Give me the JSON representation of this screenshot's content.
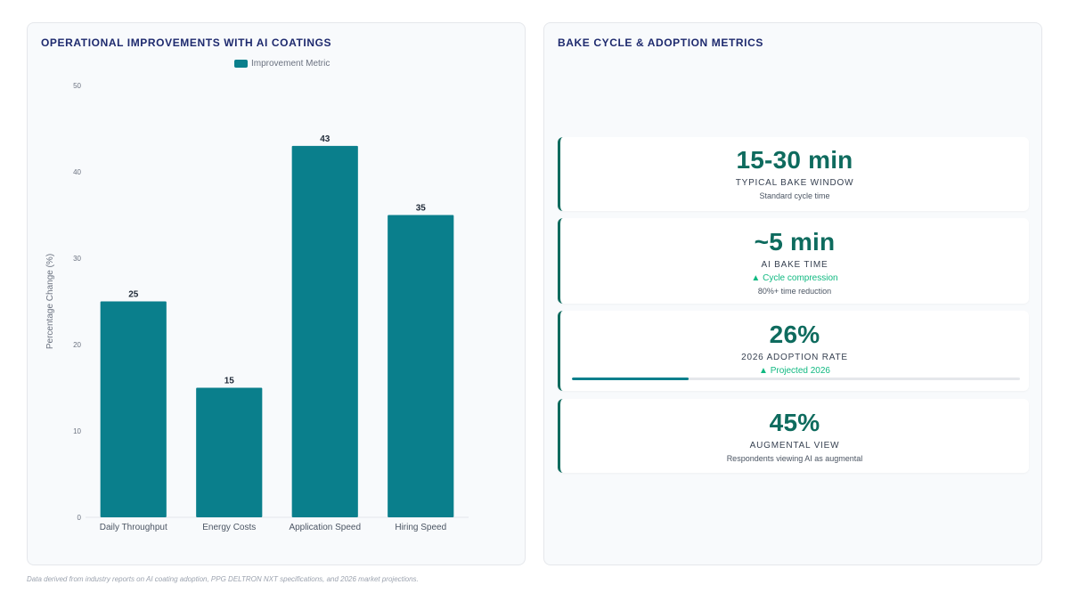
{
  "left_panel": {
    "title": "OPERATIONAL IMPROVEMENTS WITH AI COATINGS"
  },
  "right_panel": {
    "title": "BAKE CYCLE & ADOPTION METRICS"
  },
  "chart_data": {
    "type": "bar",
    "categories": [
      "Daily Throughput",
      "Energy Costs",
      "Application Speed",
      "Hiring Speed"
    ],
    "series": [
      {
        "name": "Improvement Metric",
        "values": [
          25,
          15,
          43,
          35
        ]
      }
    ],
    "data_labels": [
      "25",
      "15",
      "43",
      "35"
    ],
    "ylabel": "Percentage Change (%)",
    "xlabel": "",
    "ylim": [
      0,
      50
    ],
    "yticks": [
      0,
      10,
      20,
      30,
      40,
      50
    ],
    "legend_position": "top-center",
    "grid": false,
    "colors": {
      "bar": "#0a7f8c"
    }
  },
  "metrics": [
    {
      "value": "15-30 min",
      "label": "TYPICAL BAKE WINDOW",
      "sub": "Standard cycle time"
    },
    {
      "value": "~5 min",
      "label": "AI BAKE TIME",
      "trend": "▲ Cycle compression",
      "sub": "80%+ time reduction"
    },
    {
      "value": "26%",
      "label": "2026 ADOPTION RATE",
      "trend": "▲ Projected 2026",
      "progress_percent": 26
    },
    {
      "value": "45%",
      "label": "AUGMENTAL VIEW",
      "sub": "Respondents viewing AI as augmental"
    }
  ],
  "colors": {
    "accent": "#0e6b5e",
    "trend": "#10b981",
    "title": "#1e2a6e"
  },
  "footnote": "Data derived from industry reports on AI coating adoption, PPG DELTRON NXT specifications, and 2026 market projections."
}
